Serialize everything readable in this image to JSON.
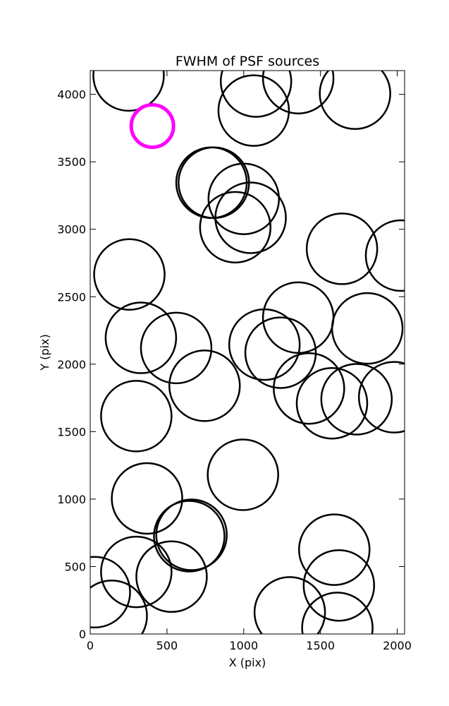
{
  "chart_data": {
    "type": "scatter",
    "title": "FWHM of PSF sources",
    "xlabel": "X (pix)",
    "ylabel": "Y (pix)",
    "xlim": [
      0,
      2048
    ],
    "ylim": [
      0,
      4176
    ],
    "xticks": [
      0,
      500,
      1000,
      1500,
      2000
    ],
    "yticks": [
      0,
      500,
      1000,
      1500,
      2000,
      2500,
      3000,
      3500,
      4000
    ],
    "grid": false,
    "marker": "circle",
    "colors": {
      "source": "#000000",
      "highlight": "#ff00ff"
    },
    "series": [
      {
        "x": [
          250,
          1080,
          1355,
          1725,
          1065,
          805,
          790,
          1000,
          1045,
          945,
          255,
          1640,
          2025,
          1355,
          330,
          560,
          1135,
          1240,
          1805,
          745,
          1425,
          1575,
          1735,
          1980,
          300,
          995,
          370,
          645,
          660,
          530,
          300,
          1590,
          30,
          140,
          1300,
          1620,
          1610
        ],
        "y": [
          4140,
          4095,
          4120,
          4005,
          3880,
          3345,
          3345,
          3225,
          3085,
          3015,
          2665,
          2855,
          2805,
          2345,
          2195,
          2120,
          2145,
          2085,
          2265,
          1840,
          1820,
          1710,
          1740,
          1755,
          1615,
          1180,
          1005,
          725,
          735,
          425,
          460,
          625,
          310,
          135,
          160,
          360,
          45
        ]
      },
      {
        "x": [
          405
        ],
        "y": [
          3765
        ]
      }
    ]
  }
}
